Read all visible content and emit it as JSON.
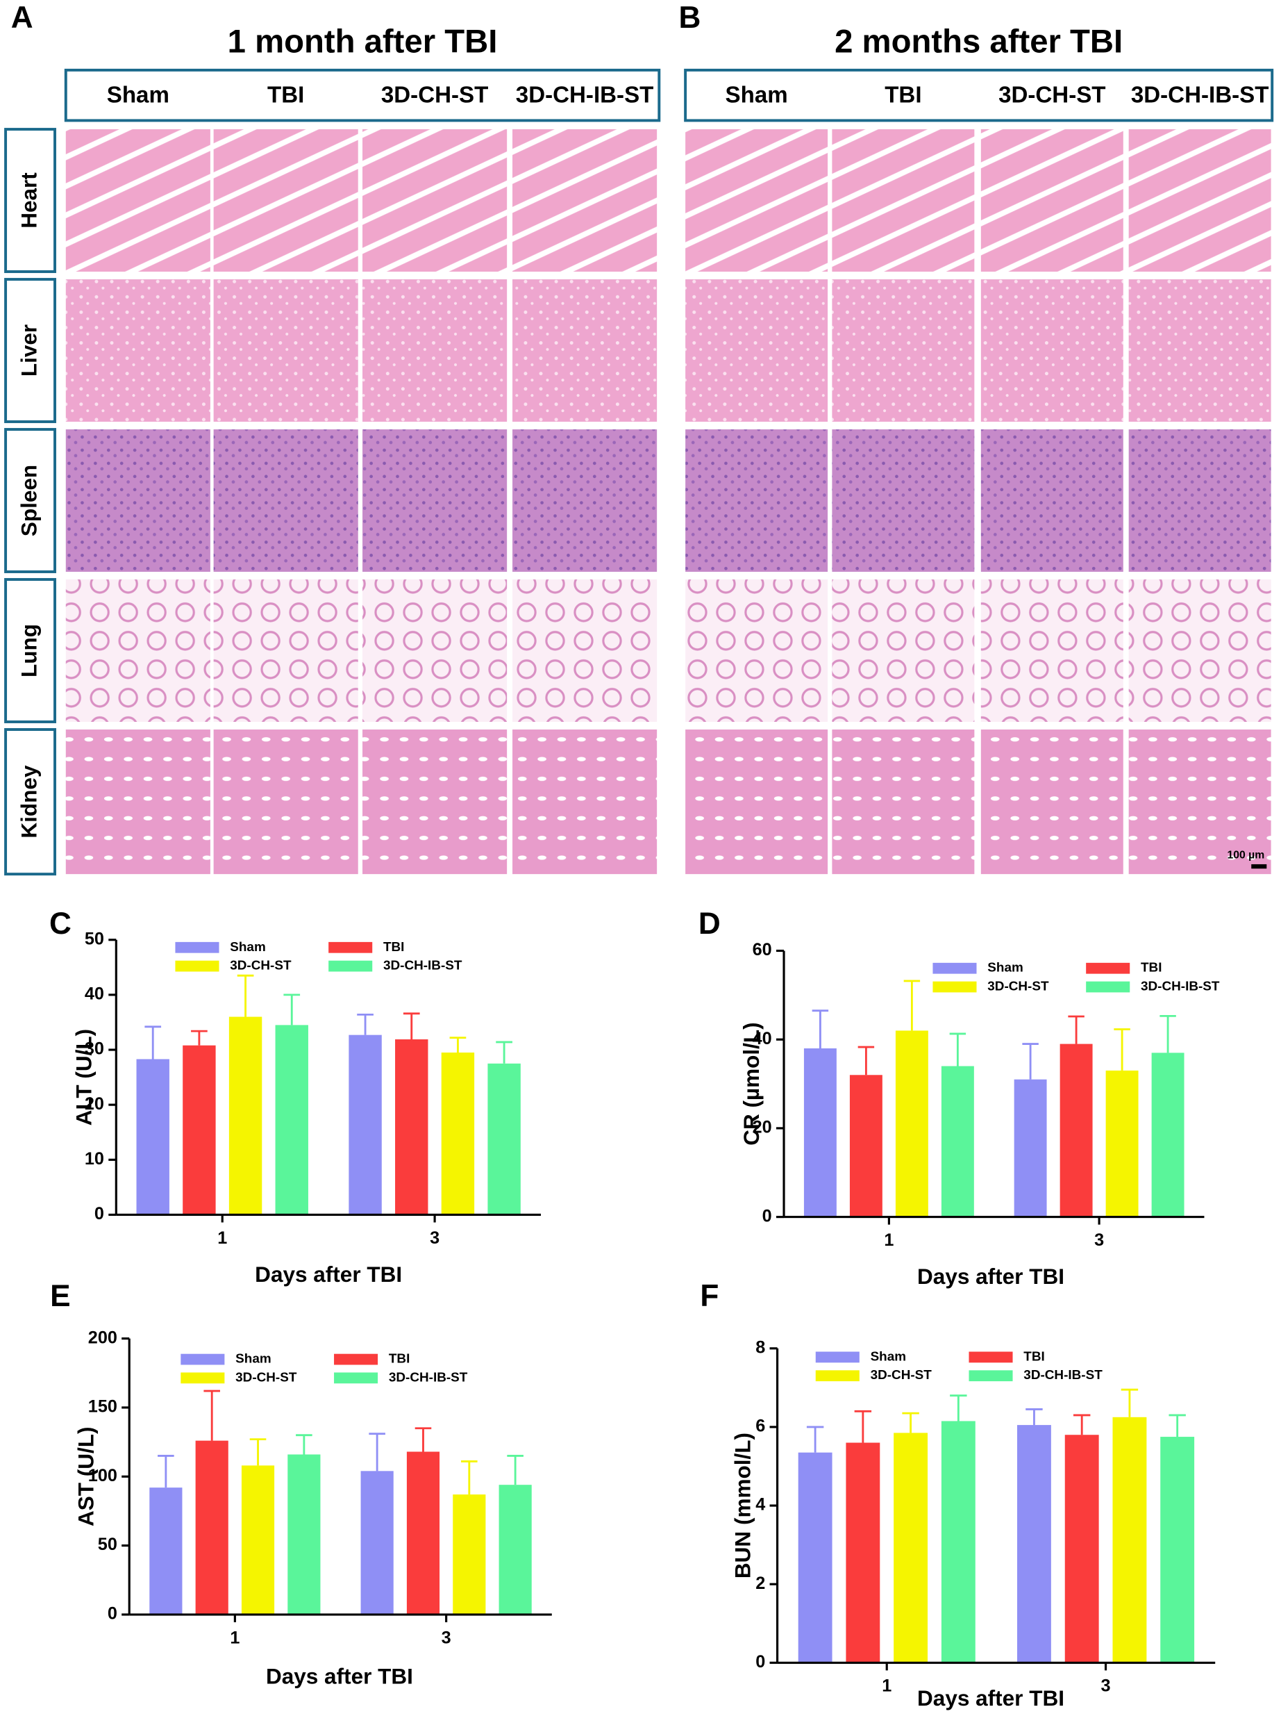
{
  "histology": [
    {
      "label": "A",
      "title": "1 month after TBI",
      "columns": [
        "Sham",
        "TBI",
        "3D-CH-ST",
        "3D-CH-IB-ST"
      ],
      "rows": [
        "Heart",
        "Liver",
        "Spleen",
        "Lung",
        "Kidney"
      ]
    },
    {
      "label": "B",
      "title": "2 months after TBI",
      "columns": [
        "Sham",
        "TBI",
        "3D-CH-ST",
        "3D-CH-IB-ST"
      ],
      "rows": [
        "Heart",
        "Liver",
        "Spleen",
        "Lung",
        "Kidney"
      ],
      "scale_bar": "100 µm"
    }
  ],
  "chart_data": [
    {
      "type": "bar",
      "label": "C",
      "x_label": "Days after TBI",
      "y_label": "ALT (U/L)",
      "categories": [
        "1",
        "3"
      ],
      "ylim": [
        0,
        50
      ],
      "yticks": [
        0,
        10,
        20,
        30,
        40,
        50
      ],
      "series": [
        {
          "name": "Sham",
          "color": "#8f8ff5",
          "values": [
            28.3,
            32.7
          ],
          "errors": [
            5.9,
            3.7
          ]
        },
        {
          "name": "TBI",
          "color": "#fa3c3c",
          "values": [
            30.8,
            31.9
          ],
          "errors": [
            2.6,
            4.7
          ]
        },
        {
          "name": "3D-CH-ST",
          "color": "#f5f500",
          "values": [
            36,
            29.5
          ],
          "errors": [
            7.5,
            2.7
          ]
        },
        {
          "name": "3D-CH-IB-ST",
          "color": "#5af59a",
          "values": [
            34.5,
            27.5
          ],
          "errors": [
            5.5,
            3.9
          ]
        }
      ]
    },
    {
      "type": "bar",
      "label": "D",
      "x_label": "Days after TBI",
      "y_label": "CR (µmol/L)",
      "categories": [
        "1",
        "3"
      ],
      "ylim": [
        0,
        60
      ],
      "yticks": [
        0,
        20,
        40,
        60
      ],
      "series": [
        {
          "name": "Sham",
          "color": "#8f8ff5",
          "values": [
            38,
            31
          ],
          "errors": [
            8.5,
            8
          ]
        },
        {
          "name": "TBI",
          "color": "#fa3c3c",
          "values": [
            32,
            39
          ],
          "errors": [
            6.3,
            6.2
          ]
        },
        {
          "name": "3D-CH-ST",
          "color": "#f5f500",
          "values": [
            42,
            33
          ],
          "errors": [
            11.2,
            9.3
          ]
        },
        {
          "name": "3D-CH-IB-ST",
          "color": "#5af59a",
          "values": [
            34,
            37
          ],
          "errors": [
            7.3,
            8.3
          ]
        }
      ]
    },
    {
      "type": "bar",
      "label": "E",
      "x_label": "Days after TBI",
      "y_label": "AST (U/L)",
      "categories": [
        "1",
        "3"
      ],
      "ylim": [
        0,
        200
      ],
      "yticks": [
        0,
        50,
        100,
        150,
        200
      ],
      "series": [
        {
          "name": "Sham",
          "color": "#8f8ff5",
          "values": [
            92,
            104
          ],
          "errors": [
            23,
            27
          ]
        },
        {
          "name": "TBI",
          "color": "#fa3c3c",
          "values": [
            126,
            118
          ],
          "errors": [
            36,
            17
          ]
        },
        {
          "name": "3D-CH-ST",
          "color": "#f5f500",
          "values": [
            108,
            87
          ],
          "errors": [
            19,
            24
          ]
        },
        {
          "name": "3D-CH-IB-ST",
          "color": "#5af59a",
          "values": [
            116,
            94
          ],
          "errors": [
            14,
            21
          ]
        }
      ]
    },
    {
      "type": "bar",
      "label": "F",
      "x_label": "Days after TBI",
      "y_label": "BUN (mmol/L)",
      "categories": [
        "1",
        "3"
      ],
      "ylim": [
        0,
        8
      ],
      "yticks": [
        0,
        2,
        4,
        6,
        8
      ],
      "series": [
        {
          "name": "Sham",
          "color": "#8f8ff5",
          "values": [
            5.35,
            6.05
          ],
          "errors": [
            0.65,
            0.4
          ]
        },
        {
          "name": "TBI",
          "color": "#fa3c3c",
          "values": [
            5.6,
            5.8
          ],
          "errors": [
            0.8,
            0.5
          ]
        },
        {
          "name": "3D-CH-ST",
          "color": "#f5f500",
          "values": [
            5.85,
            6.25
          ],
          "errors": [
            0.5,
            0.7
          ]
        },
        {
          "name": "3D-CH-IB-ST",
          "color": "#5af59a",
          "values": [
            6.15,
            5.75
          ],
          "errors": [
            0.65,
            0.55
          ]
        }
      ]
    }
  ]
}
